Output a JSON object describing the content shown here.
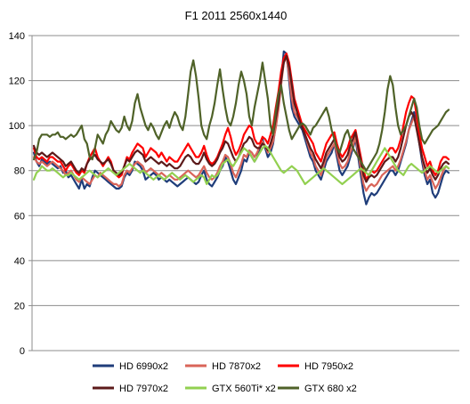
{
  "chart_data": {
    "type": "line",
    "title": "F1 2011 2560x1440",
    "xlabel": "",
    "ylabel": "",
    "ylim": [
      0,
      140
    ],
    "yticks": [
      0,
      20,
      40,
      60,
      80,
      100,
      120,
      140
    ],
    "grid": "horizontal",
    "legend_position": "bottom",
    "series": [
      {
        "name": "HD 6990x2",
        "color": "#1f3d7a",
        "values": [
          88,
          84,
          82,
          85,
          84,
          83,
          84,
          83,
          82,
          81,
          82,
          79,
          80,
          77,
          78,
          76,
          74,
          72,
          76,
          72,
          74,
          73,
          77,
          80,
          79,
          78,
          77,
          76,
          75,
          74,
          73,
          72,
          72,
          73,
          77,
          79,
          78,
          80,
          84,
          83,
          82,
          80,
          76,
          77,
          78,
          79,
          78,
          76,
          77,
          76,
          75,
          76,
          75,
          74,
          73,
          74,
          75,
          76,
          77,
          76,
          75,
          74,
          75,
          78,
          80,
          76,
          74,
          73,
          75,
          77,
          80,
          82,
          86,
          84,
          80,
          76,
          74,
          77,
          80,
          85,
          84,
          88,
          86,
          84,
          86,
          90,
          94,
          90,
          86,
          88,
          92,
          100,
          110,
          120,
          133,
          132,
          120,
          108,
          104,
          102,
          100,
          98,
          94,
          90,
          86,
          84,
          80,
          78,
          76,
          80,
          84,
          86,
          88,
          92,
          86,
          80,
          78,
          80,
          82,
          86,
          90,
          94,
          86,
          78,
          70,
          65,
          68,
          70,
          69,
          70,
          72,
          74,
          76,
          78,
          80,
          80,
          78,
          80,
          84,
          88,
          92,
          98,
          102,
          106,
          100,
          92,
          84,
          78,
          74,
          76,
          70,
          68,
          70,
          74,
          78,
          80,
          79
        ]
      },
      {
        "name": "HD 7870x2",
        "color": "#d96459",
        "values": [
          86,
          84,
          83,
          84,
          83,
          82,
          83,
          84,
          83,
          82,
          81,
          80,
          78,
          79,
          80,
          78,
          76,
          75,
          77,
          76,
          75,
          74,
          76,
          78,
          77,
          79,
          78,
          77,
          76,
          75,
          74,
          74,
          73,
          74,
          78,
          80,
          79,
          81,
          83,
          84,
          83,
          82,
          79,
          80,
          81,
          80,
          79,
          78,
          79,
          78,
          77,
          78,
          77,
          76,
          76,
          77,
          78,
          79,
          80,
          79,
          78,
          77,
          78,
          80,
          82,
          79,
          77,
          76,
          77,
          79,
          82,
          84,
          87,
          86,
          83,
          79,
          77,
          80,
          83,
          87,
          86,
          89,
          88,
          86,
          88,
          91,
          93,
          91,
          88,
          90,
          93,
          99,
          107,
          118,
          128,
          131,
          122,
          112,
          106,
          104,
          102,
          100,
          96,
          92,
          88,
          86,
          82,
          80,
          78,
          82,
          86,
          88,
          90,
          92,
          88,
          83,
          81,
          82,
          84,
          88,
          91,
          95,
          88,
          81,
          74,
          71,
          73,
          74,
          73,
          74,
          76,
          78,
          79,
          80,
          81,
          82,
          80,
          82,
          85,
          89,
          93,
          98,
          101,
          104,
          100,
          93,
          86,
          80,
          76,
          78,
          75,
          72,
          74,
          77,
          80,
          82,
          81
        ]
      },
      {
        "name": "HD 7950x2",
        "color": "#ff0000",
        "values": [
          90,
          86,
          85,
          86,
          85,
          84,
          86,
          86,
          85,
          84,
          84,
          82,
          80,
          82,
          83,
          81,
          79,
          78,
          80,
          79,
          83,
          86,
          88,
          90,
          86,
          84,
          82,
          84,
          86,
          84,
          80,
          78,
          77,
          78,
          82,
          86,
          85,
          88,
          90,
          92,
          91,
          90,
          86,
          88,
          90,
          89,
          88,
          86,
          88,
          86,
          84,
          86,
          85,
          84,
          84,
          86,
          88,
          90,
          92,
          90,
          88,
          86,
          86,
          88,
          91,
          87,
          84,
          83,
          84,
          86,
          89,
          92,
          96,
          99,
          95,
          90,
          87,
          89,
          92,
          96,
          98,
          100,
          99,
          94,
          92,
          92,
          95,
          94,
          92,
          96,
          100,
          108,
          115,
          124,
          130,
          132,
          128,
          120,
          112,
          108,
          104,
          100,
          98,
          96,
          94,
          92,
          88,
          86,
          84,
          88,
          92,
          94,
          96,
          97,
          92,
          88,
          86,
          88,
          90,
          94,
          96,
          98,
          92,
          86,
          80,
          76,
          78,
          80,
          79,
          80,
          82,
          84,
          86,
          88,
          90,
          90,
          88,
          90,
          94,
          100,
          106,
          110,
          113,
          112,
          104,
          96,
          90,
          86,
          82,
          84,
          80,
          78,
          80,
          84,
          86,
          86,
          85
        ]
      },
      {
        "name": "HD 7970x2",
        "color": "#5c1a1a",
        "values": [
          91,
          88,
          87,
          88,
          87,
          86,
          87,
          88,
          87,
          86,
          85,
          84,
          82,
          83,
          84,
          82,
          80,
          79,
          81,
          80,
          83,
          85,
          86,
          87,
          85,
          84,
          83,
          84,
          85,
          83,
          80,
          79,
          78,
          79,
          82,
          85,
          84,
          86,
          88,
          89,
          88,
          87,
          84,
          85,
          86,
          85,
          84,
          83,
          84,
          83,
          82,
          83,
          82,
          81,
          81,
          82,
          84,
          86,
          87,
          86,
          84,
          83,
          83,
          85,
          88,
          85,
          83,
          82,
          83,
          85,
          88,
          90,
          93,
          92,
          89,
          86,
          84,
          86,
          89,
          92,
          93,
          95,
          94,
          91,
          90,
          90,
          92,
          91,
          89,
          92,
          96,
          103,
          110,
          120,
          128,
          131,
          126,
          118,
          110,
          106,
          102,
          99,
          96,
          93,
          90,
          88,
          85,
          83,
          81,
          84,
          88,
          90,
          92,
          94,
          90,
          86,
          84,
          85,
          87,
          91,
          94,
          97,
          90,
          84,
          78,
          75,
          77,
          78,
          77,
          78,
          80,
          82,
          84,
          85,
          86,
          86,
          84,
          86,
          90,
          95,
          100,
          104,
          106,
          104,
          98,
          92,
          86,
          82,
          79,
          81,
          78,
          76,
          78,
          81,
          83,
          84,
          83
        ]
      },
      {
        "name": "GTX 560Ti* x2",
        "color": "#92d050",
        "values": [
          76,
          79,
          80,
          82,
          81,
          80,
          80,
          81,
          80,
          79,
          78,
          77,
          78,
          78,
          79,
          78,
          77,
          76,
          77,
          78,
          79,
          80,
          79,
          78,
          77,
          78,
          79,
          80,
          81,
          80,
          79,
          78,
          79,
          80,
          81,
          82,
          83,
          82,
          81,
          80,
          79,
          80,
          79,
          78,
          77,
          76,
          77,
          78,
          77,
          76,
          77,
          78,
          79,
          78,
          77,
          76,
          77,
          78,
          77,
          76,
          75,
          76,
          77,
          78,
          77,
          74,
          76,
          78,
          77,
          78,
          80,
          83,
          84,
          85,
          83,
          82,
          84,
          86,
          88,
          90,
          89,
          88,
          86,
          84,
          86,
          88,
          90,
          91,
          90,
          88,
          86,
          84,
          82,
          80,
          79,
          80,
          81,
          82,
          81,
          80,
          78,
          76,
          74,
          75,
          76,
          77,
          78,
          79,
          80,
          81,
          80,
          79,
          78,
          77,
          76,
          75,
          74,
          75,
          76,
          77,
          78,
          79,
          80,
          81,
          80,
          79,
          78,
          80,
          82,
          84,
          86,
          88,
          90,
          88,
          86,
          84,
          82,
          80,
          79,
          78,
          80,
          82,
          83,
          82,
          81,
          80,
          79,
          80,
          81,
          82,
          81,
          80,
          79,
          80,
          81,
          82,
          81
        ]
      },
      {
        "name": "GTX 680 x2",
        "color": "#4f6228",
        "values": [
          85,
          88,
          94,
          96,
          96,
          96,
          95,
          96,
          96,
          97,
          95,
          95,
          94,
          95,
          96,
          95,
          96,
          98,
          100,
          94,
          92,
          86,
          85,
          90,
          96,
          94,
          92,
          96,
          98,
          102,
          100,
          98,
          97,
          99,
          104,
          100,
          98,
          102,
          110,
          114,
          108,
          104,
          100,
          98,
          101,
          99,
          96,
          94,
          97,
          100,
          102,
          99,
          103,
          106,
          104,
          100,
          98,
          104,
          114,
          124,
          129,
          122,
          112,
          100,
          96,
          94,
          100,
          104,
          110,
          118,
          125,
          116,
          108,
          102,
          100,
          104,
          110,
          118,
          124,
          120,
          114,
          104,
          100,
          108,
          114,
          120,
          128,
          120,
          112,
          100,
          96,
          106,
          114,
          118,
          110,
          104,
          98,
          94,
          96,
          98,
          100,
          101,
          100,
          98,
          96,
          99,
          100,
          102,
          104,
          106,
          108,
          104,
          98,
          94,
          90,
          88,
          92,
          96,
          98,
          94,
          90,
          88,
          86,
          84,
          82,
          80,
          82,
          84,
          86,
          88,
          92,
          98,
          106,
          116,
          122,
          118,
          108,
          100,
          96,
          98,
          100,
          104,
          108,
          112,
          108,
          100,
          94,
          92,
          94,
          96,
          98,
          99,
          100,
          102,
          104,
          106,
          107
        ]
      }
    ]
  },
  "colors": {
    "grid": "#8c8c8c",
    "axis": "#8c8c8c",
    "background": "#ffffff"
  }
}
